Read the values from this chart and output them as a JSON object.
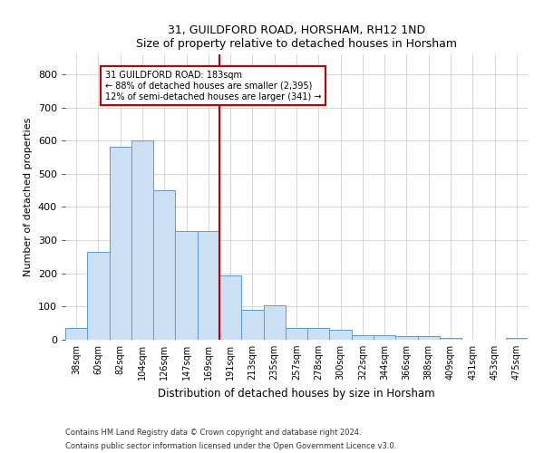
{
  "title1": "31, GUILDFORD ROAD, HORSHAM, RH12 1ND",
  "title2": "Size of property relative to detached houses in Horsham",
  "xlabel": "Distribution of detached houses by size in Horsham",
  "ylabel": "Number of detached properties",
  "bar_labels": [
    "38sqm",
    "60sqm",
    "82sqm",
    "104sqm",
    "126sqm",
    "147sqm",
    "169sqm",
    "191sqm",
    "213sqm",
    "235sqm",
    "257sqm",
    "278sqm",
    "300sqm",
    "322sqm",
    "344sqm",
    "366sqm",
    "388sqm",
    "409sqm",
    "431sqm",
    "453sqm",
    "475sqm"
  ],
  "bar_values": [
    35,
    265,
    582,
    600,
    450,
    328,
    328,
    195,
    90,
    103,
    35,
    35,
    30,
    15,
    15,
    12,
    10,
    5,
    0,
    0,
    5
  ],
  "bar_color": "#cce0f5",
  "bar_edge_color": "#5b9bd5",
  "annotation_text": "31 GUILDFORD ROAD: 183sqm\n← 88% of detached houses are smaller (2,395)\n12% of semi-detached houses are larger (341) →",
  "vline_x": 7.0,
  "vline_color": "#c00000",
  "annotation_box_color": "#c00000",
  "ylim": [
    0,
    860
  ],
  "yticks": [
    0,
    100,
    200,
    300,
    400,
    500,
    600,
    700,
    800
  ],
  "footer1": "Contains HM Land Registry data © Crown copyright and database right 2024.",
  "footer2": "Contains public sector information licensed under the Open Government Licence v3.0."
}
